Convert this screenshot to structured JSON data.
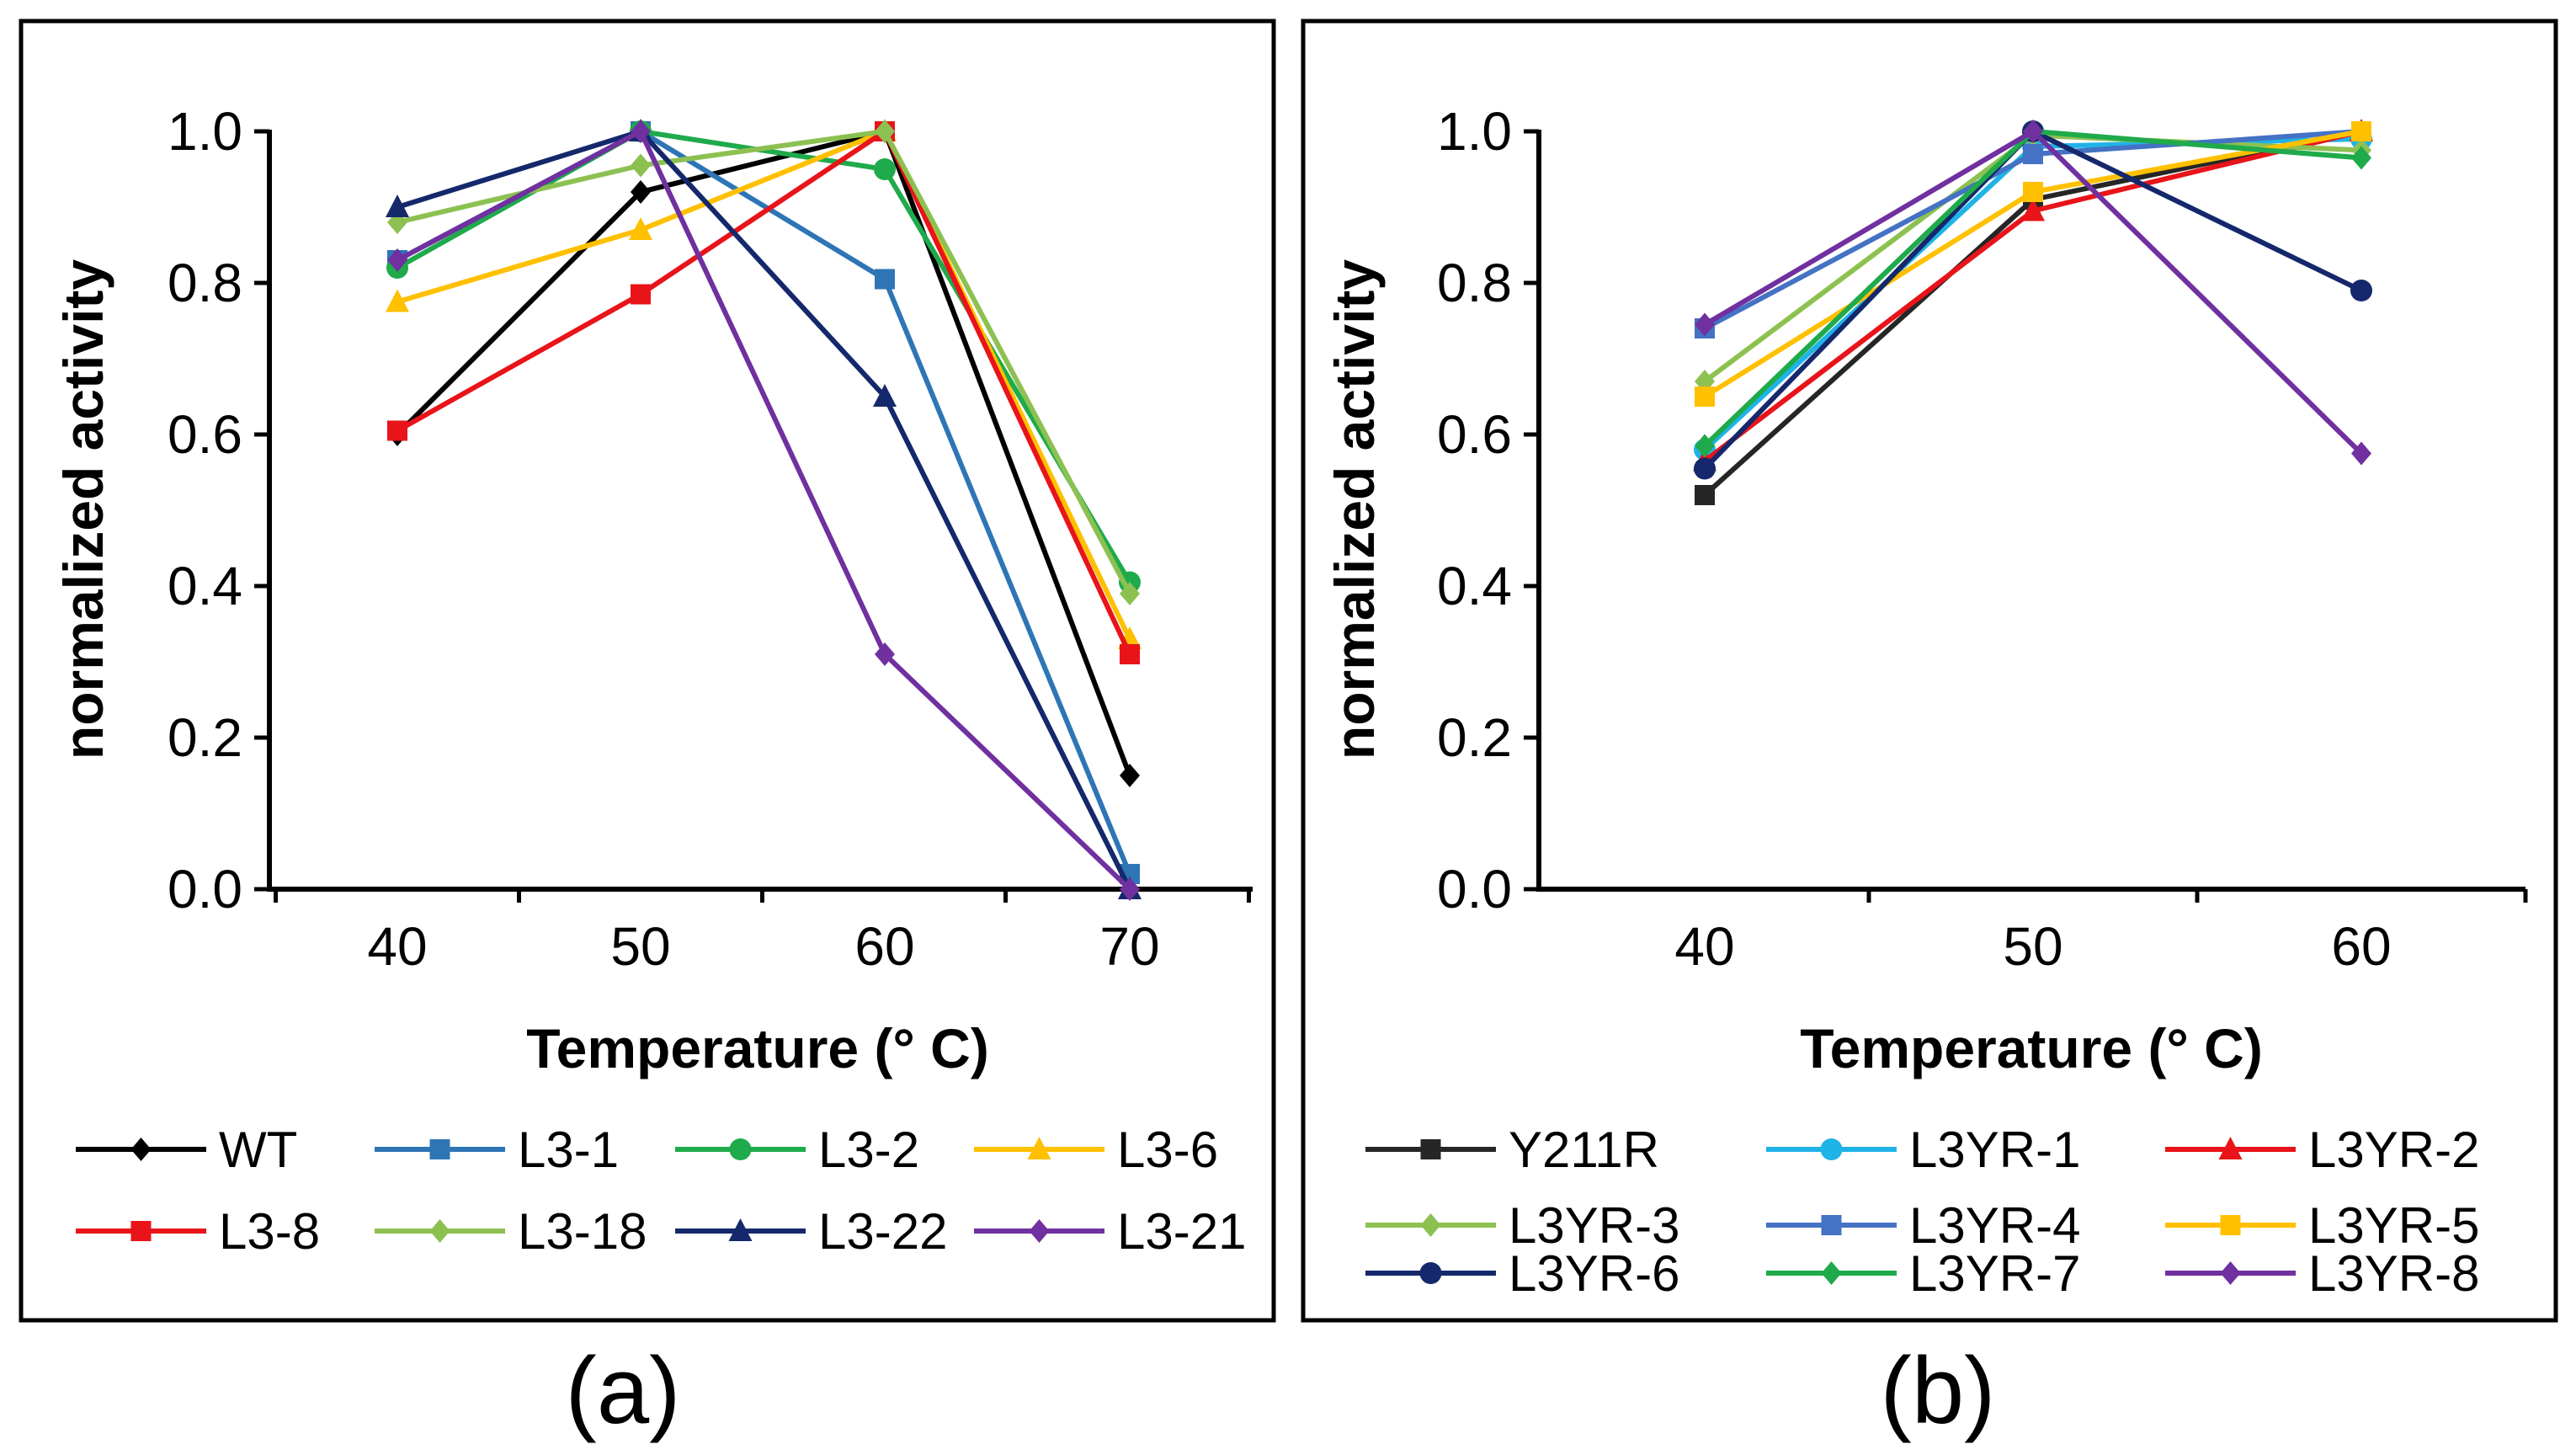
{
  "chart_data": [
    {
      "type": "line",
      "panel_label": "(a)",
      "xlabel": "Temperature (° C)",
      "ylabel": "normalized activity",
      "x": [
        40,
        50,
        60,
        70
      ],
      "x_ticks": [
        "40",
        "50",
        "60",
        "70"
      ],
      "y_ticks": [
        "0.0",
        "0.2",
        "0.4",
        "0.6",
        "0.8",
        "1.0"
      ],
      "ylim": [
        0,
        1
      ],
      "grid": false,
      "legend_position": "bottom",
      "series": [
        {
          "name": "WT",
          "color": "#000000",
          "marker": "diamond",
          "values": [
            0.6,
            0.92,
            1.0,
            0.15
          ]
        },
        {
          "name": "L3-1",
          "color": "#2E75B6",
          "marker": "square",
          "values": [
            0.83,
            1.0,
            0.805,
            0.02
          ]
        },
        {
          "name": "L3-2",
          "color": "#1FAA4B",
          "marker": "circle",
          "values": [
            0.82,
            1.0,
            0.95,
            0.405
          ]
        },
        {
          "name": "L3-6",
          "color": "#FFC000",
          "marker": "triangle",
          "values": [
            0.775,
            0.87,
            1.0,
            0.33
          ]
        },
        {
          "name": "L3-8",
          "color": "#E8141A",
          "marker": "square",
          "values": [
            0.605,
            0.785,
            1.0,
            0.31
          ]
        },
        {
          "name": "L3-18",
          "color": "#8CC152",
          "marker": "diamond",
          "values": [
            0.88,
            0.955,
            1.0,
            0.39
          ]
        },
        {
          "name": "L3-22",
          "color": "#14286B",
          "marker": "triangle",
          "values": [
            0.9,
            1.0,
            0.65,
            0.0
          ]
        },
        {
          "name": "L3-21",
          "color": "#7030A0",
          "marker": "diamond",
          "values": [
            0.83,
            1.0,
            0.31,
            0.0
          ]
        }
      ]
    },
    {
      "type": "line",
      "panel_label": "(b)",
      "xlabel": "Temperature (° C)",
      "ylabel": "normalized activity",
      "x": [
        40,
        50,
        60
      ],
      "x_ticks": [
        "40",
        "50",
        "60"
      ],
      "y_ticks": [
        "0.0",
        "0.2",
        "0.4",
        "0.6",
        "0.8",
        "1.0"
      ],
      "ylim": [
        0,
        1
      ],
      "grid": false,
      "legend_position": "bottom",
      "series": [
        {
          "name": "Y211R",
          "color": "#262626",
          "marker": "square",
          "values": [
            0.52,
            0.91,
            1.0
          ]
        },
        {
          "name": "L3YR-1",
          "color": "#1FB3E8",
          "marker": "circle",
          "values": [
            0.58,
            0.98,
            0.99
          ]
        },
        {
          "name": "L3YR-2",
          "color": "#E8141A",
          "marker": "triangle",
          "values": [
            0.565,
            0.895,
            1.0
          ]
        },
        {
          "name": "L3YR-3",
          "color": "#8CC152",
          "marker": "diamond",
          "values": [
            0.67,
            0.995,
            0.975
          ]
        },
        {
          "name": "L3YR-4",
          "color": "#4472C4",
          "marker": "square",
          "values": [
            0.74,
            0.97,
            1.0
          ]
        },
        {
          "name": "L3YR-5",
          "color": "#FFC000",
          "marker": "square",
          "values": [
            0.65,
            0.92,
            1.0
          ]
        },
        {
          "name": "L3YR-6",
          "color": "#14286B",
          "marker": "circle",
          "values": [
            0.555,
            1.0,
            0.79
          ]
        },
        {
          "name": "L3YR-7",
          "color": "#1FAA4B",
          "marker": "diamond",
          "values": [
            0.585,
            1.0,
            0.965
          ]
        },
        {
          "name": "L3YR-8",
          "color": "#7030A0",
          "marker": "diamond",
          "values": [
            0.745,
            1.0,
            0.575
          ]
        }
      ]
    }
  ]
}
